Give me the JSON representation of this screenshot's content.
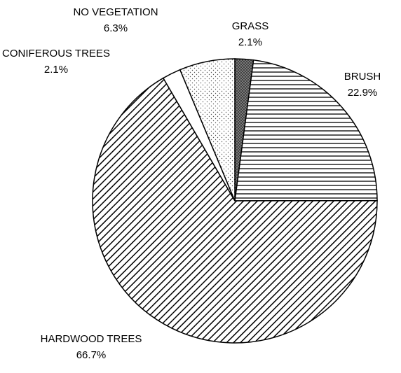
{
  "chart_data": {
    "type": "pie",
    "categories": [
      "GRASS",
      "BRUSH",
      "HARDWOOD TREES",
      "CONIFEROUS TREES",
      "NO VEGETATION"
    ],
    "values": [
      2.1,
      22.9,
      66.7,
      2.1,
      6.3
    ],
    "value_labels": [
      "2.1%",
      "22.9%",
      "66.7%",
      "2.1%",
      "6.3%"
    ],
    "patterns": [
      "crosshatch",
      "horizontal",
      "diagonal",
      "none",
      "dots"
    ]
  }
}
